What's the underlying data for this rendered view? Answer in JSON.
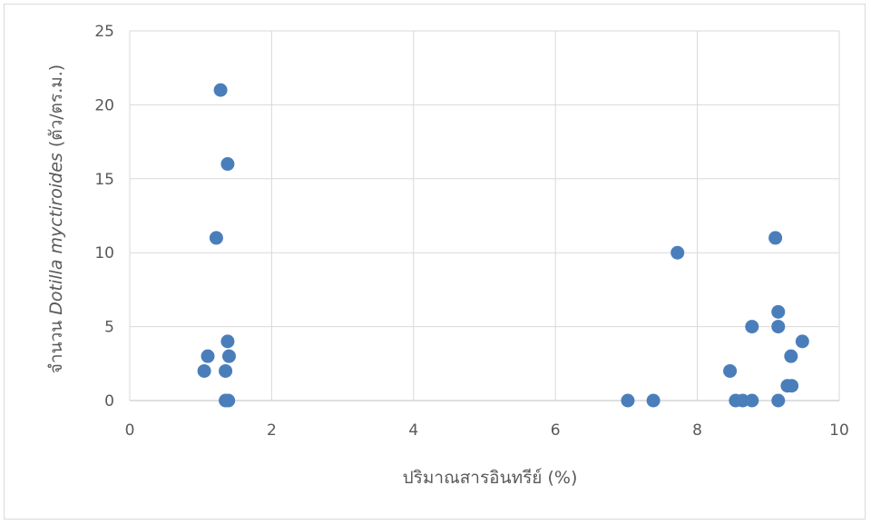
{
  "chart_data": {
    "type": "scatter",
    "title": "",
    "xlabel": "ปริมาณสารอินทรีย์ (%)",
    "ylabel_prefix": "จำนวน ",
    "ylabel_italic": "Dotilla myctiroides",
    "ylabel_suffix": " (ตัว/ตร.ม.)",
    "xlim": [
      0,
      10
    ],
    "ylim": [
      0,
      25
    ],
    "xticks": [
      0,
      2,
      4,
      6,
      8,
      10
    ],
    "yticks": [
      0,
      5,
      10,
      15,
      20,
      25
    ],
    "grid": true,
    "legend": "none",
    "marker_color": "#4a7ebb",
    "points": [
      {
        "x": 1.28,
        "y": 21
      },
      {
        "x": 1.38,
        "y": 16
      },
      {
        "x": 1.22,
        "y": 11
      },
      {
        "x": 1.38,
        "y": 4
      },
      {
        "x": 1.1,
        "y": 3
      },
      {
        "x": 1.4,
        "y": 3
      },
      {
        "x": 1.05,
        "y": 2
      },
      {
        "x": 1.35,
        "y": 2
      },
      {
        "x": 1.35,
        "y": 0
      },
      {
        "x": 1.39,
        "y": 0
      },
      {
        "x": 7.02,
        "y": 0
      },
      {
        "x": 7.38,
        "y": 0
      },
      {
        "x": 7.72,
        "y": 10
      },
      {
        "x": 8.46,
        "y": 2
      },
      {
        "x": 8.54,
        "y": 0
      },
      {
        "x": 8.64,
        "y": 0
      },
      {
        "x": 8.77,
        "y": 0
      },
      {
        "x": 8.77,
        "y": 5
      },
      {
        "x": 9.1,
        "y": 11
      },
      {
        "x": 9.14,
        "y": 6
      },
      {
        "x": 9.14,
        "y": 5
      },
      {
        "x": 9.14,
        "y": 0
      },
      {
        "x": 9.27,
        "y": 1
      },
      {
        "x": 9.33,
        "y": 1
      },
      {
        "x": 9.32,
        "y": 3
      },
      {
        "x": 9.48,
        "y": 4
      }
    ]
  }
}
